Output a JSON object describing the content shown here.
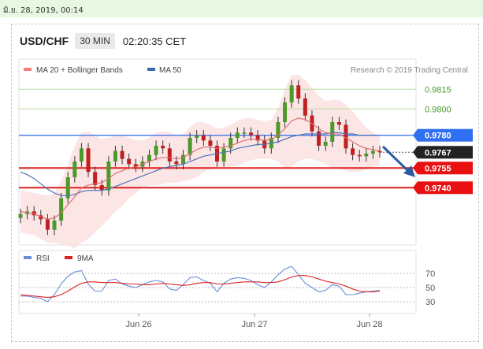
{
  "header": {
    "datetime": "มิ.ย. 28, 2019, 00:14",
    "symbol": "USD/CHF",
    "timeframe": "30 MIN",
    "clock": "02:20:35 CET"
  },
  "chart_data": {
    "type": "line",
    "legend": [
      {
        "name": "MA 20 + Bollinger Bands",
        "color": "#f08080"
      },
      {
        "name": "MA 50",
        "color": "#3a6ab0"
      }
    ],
    "copyright": "Research © 2019 Trading Central",
    "ylim": [
      0.97,
      0.9835
    ],
    "x_ticks": [
      "Jun 26",
      "Jun 27",
      "Jun 28"
    ],
    "levels": [
      {
        "value": 0.9815,
        "label": "0.9815",
        "kind": "green"
      },
      {
        "value": 0.98,
        "label": "0.9800",
        "kind": "green"
      },
      {
        "value": 0.978,
        "label": "0.9780",
        "kind": "blue"
      },
      {
        "value": 0.9767,
        "label": "0.9767",
        "kind": "current"
      },
      {
        "value": 0.9755,
        "label": "0.9755",
        "kind": "red"
      },
      {
        "value": 0.974,
        "label": "0.9740",
        "kind": "red"
      }
    ],
    "price_series": {
      "name": "USD/CHF close",
      "values": [
        0.972,
        0.9722,
        0.9719,
        0.9716,
        0.9708,
        0.9715,
        0.9732,
        0.9748,
        0.976,
        0.977,
        0.9752,
        0.9742,
        0.9738,
        0.976,
        0.9768,
        0.9762,
        0.9758,
        0.9756,
        0.976,
        0.9765,
        0.9772,
        0.977,
        0.976,
        0.9758,
        0.9765,
        0.9778,
        0.978,
        0.9776,
        0.9772,
        0.976,
        0.977,
        0.9778,
        0.9782,
        0.9782,
        0.978,
        0.9776,
        0.977,
        0.9778,
        0.979,
        0.9805,
        0.9818,
        0.9808,
        0.9795,
        0.9783,
        0.9772,
        0.9775,
        0.979,
        0.9788,
        0.977,
        0.9765,
        0.9764,
        0.9766,
        0.9768,
        0.9767
      ]
    },
    "ma20": [
      0.9722,
      0.9721,
      0.972,
      0.9718,
      0.9716,
      0.9717,
      0.9721,
      0.9727,
      0.9733,
      0.974,
      0.9742,
      0.9743,
      0.9744,
      0.9747,
      0.9751,
      0.9753,
      0.9755,
      0.9756,
      0.9758,
      0.976,
      0.9762,
      0.9763,
      0.9763,
      0.9762,
      0.9763,
      0.9766,
      0.9769,
      0.9771,
      0.9771,
      0.977,
      0.9771,
      0.9772,
      0.9774,
      0.9776,
      0.9777,
      0.9777,
      0.9776,
      0.9777,
      0.978,
      0.9785,
      0.9791,
      0.9793,
      0.9792,
      0.9789,
      0.9785,
      0.9782,
      0.9781,
      0.9781,
      0.9778,
      0.9775,
      0.9772,
      0.977,
      0.9769,
      0.9768
    ],
    "ma50": [
      0.9752,
      0.975,
      0.9747,
      0.9743,
      0.9739,
      0.9736,
      0.9734,
      0.9734,
      0.9735,
      0.9737,
      0.9738,
      0.9738,
      0.9738,
      0.9739,
      0.9741,
      0.9743,
      0.9745,
      0.9747,
      0.9749,
      0.9751,
      0.9753,
      0.9755,
      0.9756,
      0.9757,
      0.9758,
      0.976,
      0.9762,
      0.9764,
      0.9765,
      0.9766,
      0.9767,
      0.9768,
      0.977,
      0.9771,
      0.9772,
      0.9773,
      0.9773,
      0.9774,
      0.9775,
      0.9777,
      0.9779,
      0.978,
      0.9781,
      0.9781,
      0.9781,
      0.9781,
      0.9782,
      0.9782,
      0.9781,
      0.9781,
      0.978,
      0.978,
      0.978,
      0.978
    ],
    "bb_upper": [
      0.9738,
      0.9737,
      0.9736,
      0.9735,
      0.9734,
      0.9736,
      0.9745,
      0.9758,
      0.9772,
      0.9782,
      0.9783,
      0.978,
      0.9777,
      0.9778,
      0.978,
      0.978,
      0.9778,
      0.9776,
      0.9776,
      0.9778,
      0.9782,
      0.9783,
      0.9782,
      0.978,
      0.9781,
      0.9786,
      0.979,
      0.979,
      0.9788,
      0.9785,
      0.9786,
      0.9788,
      0.9791,
      0.9793,
      0.9793,
      0.9792,
      0.979,
      0.9792,
      0.98,
      0.9815,
      0.9826,
      0.9826,
      0.9822,
      0.9816,
      0.981,
      0.9806,
      0.9807,
      0.9807,
      0.9803,
      0.9798,
      0.9792,
      0.9786,
      0.9782,
      0.9779
    ],
    "bb_lower": [
      0.9706,
      0.9705,
      0.9704,
      0.9701,
      0.9698,
      0.9698,
      0.9697,
      0.9696,
      0.9694,
      0.9698,
      0.9701,
      0.9706,
      0.9711,
      0.9716,
      0.9722,
      0.9726,
      0.9732,
      0.9736,
      0.974,
      0.9742,
      0.9742,
      0.9743,
      0.9744,
      0.9744,
      0.9745,
      0.9746,
      0.9748,
      0.9752,
      0.9754,
      0.9755,
      0.9756,
      0.9756,
      0.9757,
      0.9759,
      0.9761,
      0.9762,
      0.9762,
      0.9762,
      0.976,
      0.9755,
      0.9756,
      0.976,
      0.9762,
      0.9762,
      0.976,
      0.9758,
      0.9755,
      0.9755,
      0.9753,
      0.9752,
      0.9752,
      0.9754,
      0.9756,
      0.9757
    ],
    "rsi_panel": {
      "legend": [
        {
          "name": "RSI",
          "color": "#6a8fd8"
        },
        {
          "name": "9MA",
          "color": "#dd2222"
        }
      ],
      "ylim": [
        20,
        80
      ],
      "ticks": [
        70,
        50,
        30
      ],
      "rsi": [
        38,
        38,
        36,
        35,
        30,
        40,
        55,
        66,
        72,
        74,
        55,
        45,
        45,
        60,
        62,
        55,
        52,
        50,
        54,
        58,
        60,
        58,
        48,
        46,
        54,
        64,
        65,
        60,
        56,
        44,
        56,
        62,
        64,
        63,
        60,
        54,
        50,
        58,
        68,
        76,
        80,
        68,
        56,
        50,
        44,
        46,
        54,
        52,
        40,
        40,
        42,
        44,
        45,
        46
      ],
      "ma9": [
        40,
        39,
        38,
        37,
        36,
        37,
        40,
        45,
        51,
        56,
        58,
        58,
        57,
        57,
        57,
        56,
        55,
        55,
        54,
        54,
        55,
        56,
        55,
        54,
        53,
        54,
        56,
        57,
        57,
        55,
        55,
        56,
        57,
        58,
        58,
        58,
        57,
        57,
        58,
        61,
        65,
        67,
        67,
        65,
        62,
        59,
        57,
        55,
        52,
        48,
        45,
        44,
        44,
        45
      ]
    },
    "annotation": "bearish arrow toward 0.9740"
  }
}
